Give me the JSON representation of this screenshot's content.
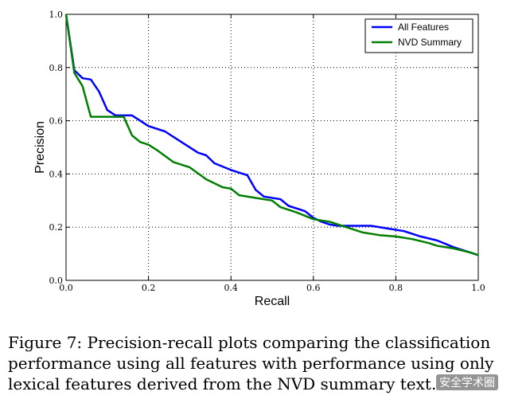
{
  "chart_data": {
    "type": "line",
    "xlabel": "Recall",
    "ylabel": "Precision",
    "xlim": [
      0,
      1
    ],
    "ylim": [
      0,
      1
    ],
    "xticks": [
      "0.0",
      "0.2",
      "0.4",
      "0.6",
      "0.8",
      "1.0"
    ],
    "yticks": [
      "0.0",
      "0.2",
      "0.4",
      "0.6",
      "0.8",
      "1.0"
    ],
    "grid": true,
    "legend_position": "top-right",
    "series": [
      {
        "name": "All Features",
        "color": "#0000ff",
        "x": [
          0.0,
          0.02,
          0.04,
          0.06,
          0.08,
          0.1,
          0.12,
          0.16,
          0.2,
          0.24,
          0.28,
          0.32,
          0.34,
          0.36,
          0.4,
          0.44,
          0.46,
          0.48,
          0.52,
          0.54,
          0.58,
          0.6,
          0.62,
          0.64,
          0.66,
          0.7,
          0.74,
          0.78,
          0.82,
          0.86,
          0.9,
          0.94,
          0.98,
          1.0
        ],
        "y": [
          1.0,
          0.79,
          0.76,
          0.755,
          0.71,
          0.64,
          0.62,
          0.62,
          0.58,
          0.56,
          0.52,
          0.48,
          0.47,
          0.44,
          0.415,
          0.395,
          0.34,
          0.315,
          0.305,
          0.28,
          0.26,
          0.235,
          0.22,
          0.21,
          0.205,
          0.205,
          0.205,
          0.195,
          0.185,
          0.165,
          0.15,
          0.125,
          0.105,
          0.095
        ]
      },
      {
        "name": "NVD Summary",
        "color": "#007f00",
        "x": [
          0.0,
          0.02,
          0.04,
          0.06,
          0.1,
          0.14,
          0.16,
          0.18,
          0.2,
          0.22,
          0.26,
          0.3,
          0.34,
          0.38,
          0.4,
          0.42,
          0.46,
          0.5,
          0.52,
          0.56,
          0.6,
          0.64,
          0.68,
          0.72,
          0.76,
          0.8,
          0.84,
          0.88,
          0.9,
          0.94,
          0.98,
          1.0
        ],
        "y": [
          1.0,
          0.78,
          0.73,
          0.615,
          0.615,
          0.615,
          0.545,
          0.52,
          0.51,
          0.49,
          0.445,
          0.425,
          0.38,
          0.35,
          0.345,
          0.32,
          0.31,
          0.3,
          0.275,
          0.255,
          0.23,
          0.22,
          0.2,
          0.18,
          0.17,
          0.165,
          0.155,
          0.14,
          0.13,
          0.12,
          0.105,
          0.095
        ]
      }
    ]
  },
  "caption": "Figure 7: Precision-recall plots comparing the classification performance using all features with performance using only lexical features derived from the NVD summary text.",
  "watermark": "安全学术圈"
}
